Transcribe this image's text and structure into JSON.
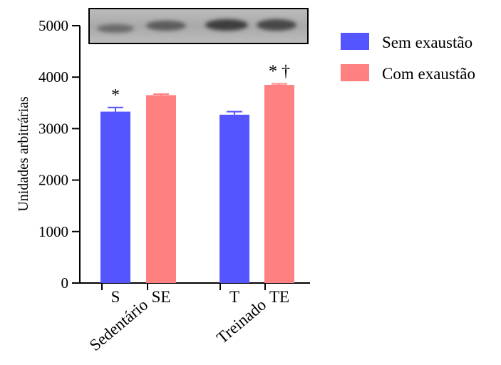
{
  "chart_data": {
    "type": "bar",
    "ylabel": "Unidades arbitrárias",
    "ylim": [
      0,
      5000
    ],
    "yticks": [
      0,
      1000,
      2000,
      3000,
      4000,
      5000
    ],
    "categories": [
      "S",
      "SE",
      "T",
      "TE"
    ],
    "groups": [
      "Sedentário",
      "Treinado"
    ],
    "series": [
      {
        "name": "Sem exaustão",
        "color": "#5555ff",
        "values": [
          3330,
          null,
          3270,
          null
        ],
        "errors": [
          80,
          null,
          60,
          null
        ]
      },
      {
        "name": "Com exaustão",
        "color": "#ff8080",
        "values": [
          null,
          3650,
          null,
          3850
        ],
        "errors": [
          null,
          20,
          null,
          20
        ]
      }
    ],
    "annotations": [
      "*",
      null,
      null,
      "* †"
    ],
    "legend_position": "top-right",
    "inset": "western blot"
  }
}
